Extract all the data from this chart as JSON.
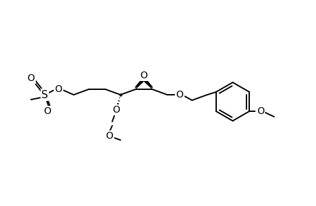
{
  "bg": "#ffffff",
  "lc": "#000000",
  "lw": 1.4,
  "figsize": [
    4.6,
    3.0
  ],
  "dpi": 100,
  "xlim": [
    0,
    460
  ],
  "ylim": [
    0,
    300
  ]
}
